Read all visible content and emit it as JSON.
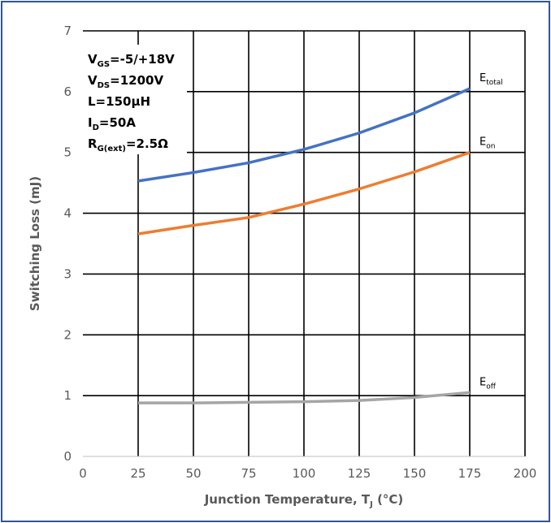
{
  "chart_data": {
    "type": "line",
    "xlabel": "Junction Temperature, T",
    "xlabel_sub": "J",
    "xlabel_unit": " (°C)",
    "ylabel": "Switching Loss (mJ)",
    "xlim": [
      0,
      200
    ],
    "ylim": [
      0,
      7
    ],
    "xticks": [
      "0",
      "25",
      "50",
      "75",
      "100",
      "125",
      "150",
      "175",
      "200"
    ],
    "yticks": [
      "0",
      "1",
      "2",
      "3",
      "4",
      "5",
      "6",
      "7"
    ],
    "grid": true,
    "conditions": [
      {
        "main": "V",
        "sub": "GS",
        "rest": "=-5/+18V"
      },
      {
        "main": "V",
        "sub": "DS",
        "rest": "=1200V"
      },
      {
        "main": "L=150µH",
        "sub": "",
        "rest": ""
      },
      {
        "main": "I",
        "sub": "D",
        "rest": "=50A"
      },
      {
        "main": "R",
        "sub": "G(ext)",
        "rest": "=2.5Ω"
      }
    ],
    "series": [
      {
        "name": "E",
        "name_sub": "total",
        "color": "#4472c4",
        "x": [
          25,
          50,
          75,
          100,
          125,
          150,
          175
        ],
        "y": [
          4.53,
          4.67,
          4.83,
          5.05,
          5.32,
          5.65,
          6.05
        ]
      },
      {
        "name": "E",
        "name_sub": "on",
        "color": "#ed7d31",
        "x": [
          25,
          50,
          75,
          100,
          125,
          150,
          175
        ],
        "y": [
          3.66,
          3.8,
          3.93,
          4.15,
          4.4,
          4.68,
          5.0
        ]
      },
      {
        "name": "E",
        "name_sub": "off",
        "color": "#a5a5a5",
        "x": [
          25,
          50,
          75,
          100,
          125,
          150,
          175
        ],
        "y": [
          0.88,
          0.88,
          0.89,
          0.9,
          0.92,
          0.97,
          1.05
        ]
      }
    ]
  }
}
